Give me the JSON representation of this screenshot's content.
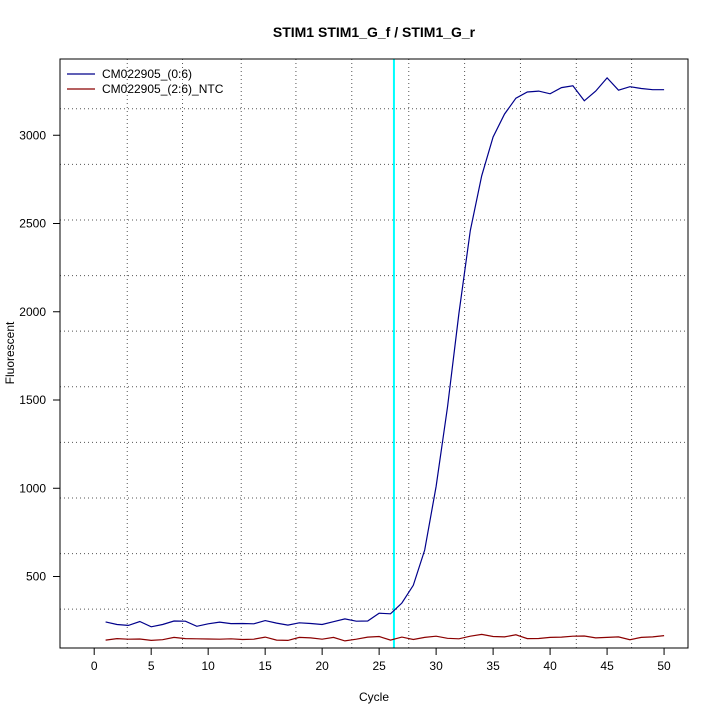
{
  "chart_data": {
    "type": "line",
    "title": "STIM1  STIM1_G_f / STIM1_G_r",
    "xlabel": "Cycle",
    "ylabel": "Fluorescent",
    "xlim": [
      -3,
      52.1
    ],
    "ylim": [
      95,
      3432
    ],
    "xticks": [
      0,
      5,
      10,
      15,
      20,
      25,
      30,
      35,
      40,
      45,
      50
    ],
    "yticks": [
      500,
      1000,
      1500,
      2000,
      2500,
      3000
    ],
    "grid": true,
    "grid_x": [
      2.9,
      7.75,
      12.9,
      17.7,
      22.6,
      27.6,
      32.5,
      37.4,
      42.3,
      47.15
    ],
    "grid_y": [
      315,
      630,
      945,
      1260,
      1575,
      1890,
      2205,
      2520,
      2835,
      3150
    ],
    "threshold_cycle": 26.3,
    "threshold_color": "#00ffff",
    "legend_position": "top-left",
    "x": [
      1,
      2,
      3,
      4,
      5,
      6,
      7,
      8,
      9,
      10,
      11,
      12,
      13,
      14,
      15,
      16,
      17,
      18,
      19,
      20,
      21,
      22,
      23,
      24,
      25,
      26,
      27,
      28,
      29,
      30,
      31,
      32,
      33,
      34,
      35,
      36,
      37,
      38,
      39,
      40,
      41,
      42,
      43,
      44,
      45,
      46,
      47,
      48,
      49,
      50
    ],
    "series": [
      {
        "name": "CM022905_(0:6)",
        "color": "#00008b",
        "values": [
          243,
          228,
          223,
          245,
          215,
          228,
          248,
          247,
          218,
          232,
          242,
          233,
          234,
          232,
          250,
          236,
          225,
          238,
          234,
          228,
          244,
          260,
          247,
          248,
          292,
          289,
          350,
          450,
          650,
          1010,
          1460,
          1990,
          2460,
          2770,
          2990,
          3120,
          3210,
          3245,
          3250,
          3235,
          3270,
          3280,
          3195,
          3250,
          3325,
          3255,
          3275,
          3265,
          3258,
          3258
        ]
      },
      {
        "name": "CM022905_(2:6)_NTC",
        "color": "#8b0000",
        "values": [
          140,
          148,
          145,
          146,
          138,
          142,
          155,
          148,
          147,
          146,
          145,
          147,
          143,
          145,
          157,
          140,
          138,
          155,
          152,
          145,
          155,
          135,
          145,
          157,
          160,
          140,
          157,
          143,
          155,
          162,
          150,
          147,
          162,
          172,
          160,
          158,
          170,
          148,
          149,
          155,
          157,
          162,
          163,
          152,
          155,
          158,
          142,
          155,
          158,
          165
        ]
      }
    ]
  }
}
